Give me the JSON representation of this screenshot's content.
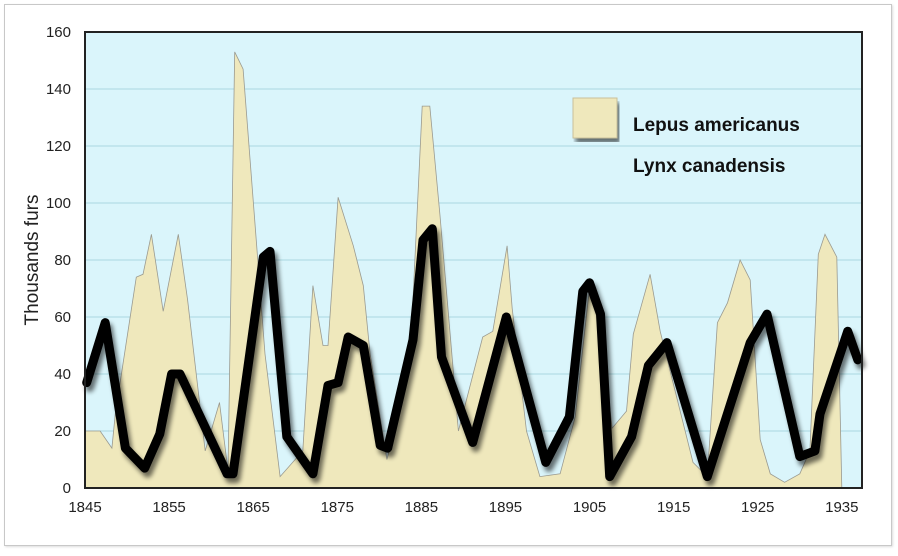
{
  "chart_data": {
    "type": "area",
    "title": "",
    "xlabel": "",
    "ylabel": "Thousands furs",
    "xlim": [
      1845,
      1937.4
    ],
    "ylim": [
      0,
      160
    ],
    "grid": true,
    "legend_position": "top-right",
    "x_ticks": [
      "1845",
      "1855",
      "1865",
      "1875",
      "1885",
      "1895",
      "1905",
      "1915",
      "1925",
      "1935"
    ],
    "y_ticks": [
      "0",
      "20",
      "40",
      "60",
      "80",
      "100",
      "120",
      "140",
      "160"
    ],
    "colors": {
      "plot_bg": "#daf5fb",
      "hare_fill": "#efe8bc",
      "hare_edge": "#9a9a90",
      "lynx": "#000000",
      "grid": "#a9d8e0"
    },
    "series": [
      {
        "name": "Lepus americanus",
        "style": "area",
        "x": [
          1845,
          1846.8,
          1848.2,
          1848.6,
          1851.1,
          1851.9,
          1852.9,
          1854.3,
          1856.1,
          1857.2,
          1859.3,
          1861,
          1862,
          1862.8,
          1863.8,
          1866.4,
          1868.2,
          1870.9,
          1872.1,
          1873.3,
          1873.9,
          1875.1,
          1876.9,
          1878.1,
          1878.9,
          1880.9,
          1883.6,
          1885.1,
          1886,
          1887.2,
          1889.4,
          1892.3,
          1893.5,
          1895.2,
          1895.8,
          1897.5,
          1899.1,
          1901.5,
          1903.3,
          1905.1,
          1905.9,
          1907.7,
          1909.4,
          1910.2,
          1912.2,
          1913.4,
          1917.3,
          1919,
          1920.2,
          1921.4,
          1922.9,
          1924.1,
          1925.3,
          1926.5,
          1928.2,
          1930,
          1931.2,
          1932.2,
          1933,
          1934.4,
          1935
        ],
        "values": [
          20,
          20,
          14,
          26,
          74,
          75,
          89,
          62,
          89,
          66,
          13,
          30,
          6,
          153,
          147,
          47,
          4,
          13,
          71,
          50,
          50,
          102,
          85,
          71,
          47,
          10,
          41,
          134,
          134,
          96,
          20,
          53,
          55,
          85,
          63,
          20,
          4,
          5,
          25,
          73,
          65,
          21,
          27,
          54,
          75,
          55,
          9,
          4,
          58,
          65,
          80,
          73,
          17,
          5,
          2,
          5,
          13,
          82,
          89,
          81,
          0
        ]
      },
      {
        "name": "Lynx canadensis",
        "style": "line",
        "x": [
          1845.2,
          1847.4,
          1849.8,
          1852.1,
          1853.9,
          1855.3,
          1856.3,
          1861.9,
          1862.6,
          1866.2,
          1867,
          1869,
          1872.1,
          1873.9,
          1875.1,
          1876.3,
          1878.1,
          1880.1,
          1881,
          1884,
          1885.2,
          1886.3,
          1887.4,
          1891.1,
          1895.1,
          1899.8,
          1902.6,
          1904.2,
          1905,
          1906.3,
          1907.4,
          1910,
          1912,
          1914.2,
          1919,
          1924.1,
          1926.1,
          1930,
          1931.8,
          1932.4,
          1935.7,
          1936.9
        ],
        "values": [
          37,
          58,
          14,
          7,
          19,
          40,
          40,
          5,
          5,
          81,
          83,
          18,
          5,
          36,
          37,
          53,
          50,
          15,
          14,
          52,
          87,
          91,
          46,
          16,
          60,
          9,
          25,
          69,
          72,
          61,
          4,
          18,
          43,
          51,
          4,
          51,
          61,
          11,
          13,
          26,
          55,
          45
        ]
      }
    ]
  }
}
